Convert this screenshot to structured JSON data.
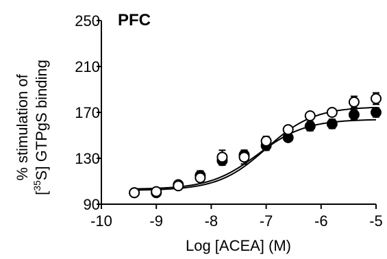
{
  "chart_data": {
    "type": "scatter",
    "title": "PFC",
    "xlabel": "Log [ACEA] (M)",
    "ylabel_line1": "% stimulation of",
    "ylabel_line2_prefix": "[",
    "ylabel_line2_sup": "35",
    "ylabel_line2_rest": "S] GTPgS binding",
    "xlim": [
      -10,
      -5
    ],
    "ylim": [
      90,
      250
    ],
    "x_ticks": [
      -10,
      -9,
      -8,
      -7,
      -6,
      -5
    ],
    "y_ticks": [
      90,
      130,
      170,
      210,
      250
    ],
    "grid": false,
    "series": [
      {
        "marker": "filled-circle",
        "x": [
          -9.4,
          -9.0,
          -8.6,
          -8.2,
          -7.8,
          -7.4,
          -7.0,
          -6.6,
          -6.2,
          -5.8,
          -5.4,
          -5.0
        ],
        "y": [
          100,
          100,
          107,
          115,
          128,
          133,
          141,
          148,
          158,
          160,
          168,
          170
        ],
        "error": [
          2,
          2,
          2,
          4,
          4,
          4,
          4,
          2,
          4,
          4,
          4,
          4
        ],
        "fit": {
          "bottom": 103,
          "top": 164,
          "logEC50": -7.15,
          "hill": 1
        }
      },
      {
        "marker": "open-circle",
        "x": [
          -9.4,
          -9.0,
          -8.6,
          -8.2,
          -7.8,
          -7.4,
          -7.0,
          -6.6,
          -6.2,
          -5.8,
          -5.4,
          -5.0
        ],
        "y": [
          100,
          101,
          106,
          113,
          131,
          131,
          145,
          155,
          167,
          170,
          179,
          182
        ],
        "error": [
          2,
          2,
          2,
          3,
          6,
          6,
          4,
          2,
          3,
          3,
          5,
          5
        ],
        "fit": {
          "bottom": 102,
          "top": 175,
          "logEC50": -7.0,
          "hill": 1
        }
      }
    ]
  }
}
